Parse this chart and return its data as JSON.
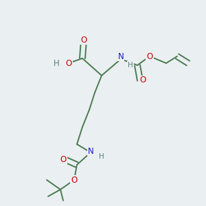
{
  "background_color": "#eaeff2",
  "bond_color": "#4a7a50",
  "atom_colors": {
    "O": "#cc0000",
    "N": "#1a1acc",
    "H": "#5a8080",
    "C": "#4a7a50"
  },
  "figsize": [
    3.0,
    3.0
  ],
  "dpi": 100,
  "lw": 1.4,
  "fs": 8.5,
  "fs_small": 7.5
}
